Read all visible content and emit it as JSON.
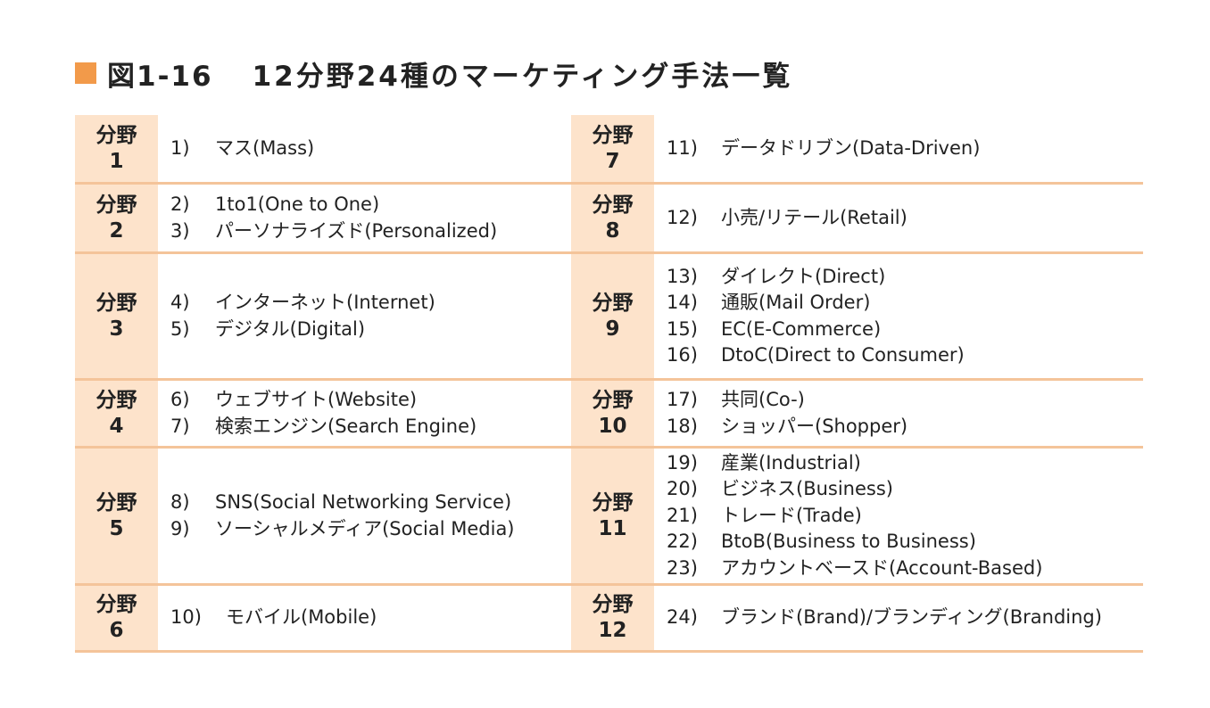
{
  "title": {
    "figure": "図1-16",
    "text": "12分野24種のマーケティング手法一覧"
  },
  "colors": {
    "accent": "#f29a4a",
    "label_bg": "#fde3cb",
    "divider": "#f4c49a"
  },
  "fields": [
    {
      "label": "分野",
      "num": "1",
      "items": [
        {
          "num": "1)",
          "text": "マス(Mass)"
        }
      ]
    },
    {
      "label": "分野",
      "num": "2",
      "items": [
        {
          "num": "2)",
          "text": "1to1(One to One)"
        },
        {
          "num": "3)",
          "text": "パーソナライズド(Personalized)"
        }
      ]
    },
    {
      "label": "分野",
      "num": "3",
      "items": [
        {
          "num": "4)",
          "text": "インターネット(Internet)"
        },
        {
          "num": "5)",
          "text": "デジタル(Digital)"
        }
      ]
    },
    {
      "label": "分野",
      "num": "4",
      "items": [
        {
          "num": "6)",
          "text": "ウェブサイト(Website)"
        },
        {
          "num": "7)",
          "text": "検索エンジン(Search Engine)"
        }
      ]
    },
    {
      "label": "分野",
      "num": "5",
      "items": [
        {
          "num": "8)",
          "text": "SNS(Social Networking Service)"
        },
        {
          "num": "9)",
          "text": "ソーシャルメディア(Social Media)"
        }
      ]
    },
    {
      "label": "分野",
      "num": "6",
      "items": [
        {
          "num": "10)",
          "text": "モバイル(Mobile)"
        }
      ]
    },
    {
      "label": "分野",
      "num": "7",
      "items": [
        {
          "num": "11)",
          "text": "データドリブン(Data-Driven)"
        }
      ]
    },
    {
      "label": "分野",
      "num": "8",
      "items": [
        {
          "num": "12)",
          "text": "小売/リテール(Retail)"
        }
      ]
    },
    {
      "label": "分野",
      "num": "9",
      "items": [
        {
          "num": "13)",
          "text": "ダイレクト(Direct)"
        },
        {
          "num": "14)",
          "text": "通販(Mail Order)"
        },
        {
          "num": "15)",
          "text": "EC(E-Commerce)"
        },
        {
          "num": "16)",
          "text": "DtoC(Direct to Consumer)"
        }
      ]
    },
    {
      "label": "分野",
      "num": "10",
      "items": [
        {
          "num": "17)",
          "text": "共同(Co-)"
        },
        {
          "num": "18)",
          "text": "ショッパー(Shopper)"
        }
      ]
    },
    {
      "label": "分野",
      "num": "11",
      "items": [
        {
          "num": "19)",
          "text": "産業(Industrial)"
        },
        {
          "num": "20)",
          "text": "ビジネス(Business)"
        },
        {
          "num": "21)",
          "text": "トレード(Trade)"
        },
        {
          "num": "22)",
          "text": "BtoB(Business to Business)"
        },
        {
          "num": "23)",
          "text": "アカウントベースド(Account-Based)"
        }
      ]
    },
    {
      "label": "分野",
      "num": "12",
      "items": [
        {
          "num": "24)",
          "text": "ブランド(Brand)/ブランディング(Branding)"
        }
      ]
    }
  ]
}
